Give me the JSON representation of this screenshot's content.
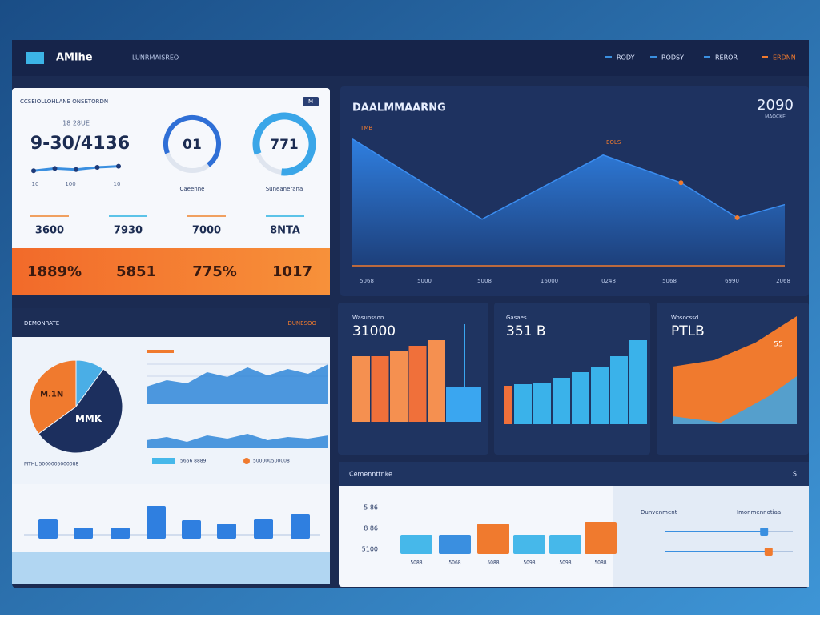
{
  "nav": {
    "logo": "AMihe",
    "subtitle": "LUNRMAISREO",
    "links": [
      "RODY",
      "RODSY",
      "REROR",
      "ERDNN"
    ]
  },
  "kpi_card": {
    "header": "CCSEIOLLOHLANE ONSETORDN",
    "badge": "M",
    "big_number": "9-30/4136",
    "big_caption": "18 28UE",
    "sparkline": [
      12,
      14,
      13,
      15,
      16
    ],
    "sparkline_labels": [
      "10",
      "100",
      "10"
    ],
    "donuts": [
      {
        "label": "01",
        "caption": "Caeenne",
        "value": 70
      },
      {
        "label": "771",
        "caption": "Suneanerana",
        "value": 82
      }
    ],
    "stats": [
      "3600",
      "7930",
      "7000",
      "8NTA"
    ],
    "highlights": [
      "1889%",
      "5851",
      "775%",
      "1017"
    ]
  },
  "area_panel": {
    "title": "DAALMMAARNG",
    "year": "2090",
    "year_caption": "MAOCKE",
    "tag": "TMB",
    "marker": "EOLS",
    "x": [
      0,
      30,
      58,
      76,
      89,
      100
    ],
    "values": [
      87,
      32,
      76,
      57,
      33,
      42
    ],
    "x_labels": [
      "5068",
      "5000",
      "5008",
      "16000",
      "0248",
      "5068",
      "6990",
      "2068"
    ]
  },
  "pie_panel": {
    "header_left": "DEMONRATE",
    "header_right": "DUNESOO",
    "slices": [
      {
        "value": 10,
        "color": "#4aaee6"
      },
      {
        "label": "MMK",
        "value": 55,
        "color": "#1c2f5e"
      },
      {
        "label": "M.1N",
        "value": 35,
        "color": "#f07a2e"
      }
    ],
    "caption": "MTHL 5000005000088",
    "wave_top": [
      22,
      30,
      26,
      40,
      34,
      46,
      36,
      44,
      38,
      50
    ],
    "wave_bottom": [
      10,
      14,
      8,
      16,
      12,
      18,
      10,
      14,
      12,
      16
    ],
    "legend": [
      "5666 8889",
      "500000500008"
    ]
  },
  "bar_panel": {
    "values": [
      25,
      14,
      14,
      41,
      23,
      19,
      25,
      31
    ]
  },
  "mini_panels": [
    {
      "title": "Wasunsson",
      "value": "31000",
      "bars": [
        82,
        82,
        89,
        95,
        102,
        43
      ]
    },
    {
      "title": "Gasaes",
      "value": "351 B",
      "bars": [
        48,
        50,
        52,
        58,
        65,
        72,
        85,
        105
      ]
    },
    {
      "title": "Wosocssd",
      "value": "PTLB",
      "note": "55",
      "area": [
        70,
        78,
        100,
        133
      ]
    }
  ],
  "bottom_panel": {
    "title": "Cemennttnke",
    "side": "S",
    "y_labels": [
      "5 86",
      "8 86",
      "5100"
    ],
    "bars": [
      24,
      24,
      38,
      24,
      24,
      40
    ],
    "colors": [
      "#46b8ea",
      "#3a8fe0",
      "#f07a2e",
      "#46b8ea",
      "#46b8ea",
      "#f07a2e"
    ],
    "x_labels": [
      "5088",
      "5068",
      "5088",
      "5098",
      "5098",
      "5088"
    ],
    "controls": [
      "Dunvenment",
      "Imonmennotiaa"
    ],
    "sliders": [
      88,
      92
    ]
  }
}
